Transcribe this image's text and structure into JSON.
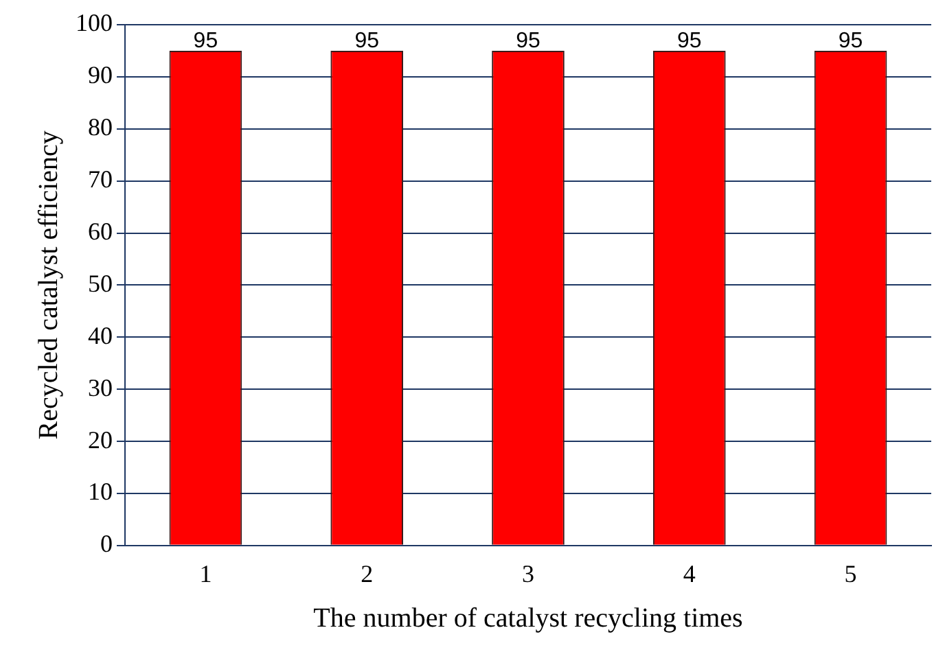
{
  "chart_data": {
    "type": "bar",
    "xlabel": "The number of catalyst recycling times",
    "ylabel": "Recycled catalyst efficiency",
    "categories": [
      "1",
      "2",
      "3",
      "4",
      "5"
    ],
    "values": [
      95,
      95,
      95,
      95,
      95
    ],
    "color": "#ff0000",
    "ylim": [
      0,
      100
    ],
    "yticks": [
      0,
      10,
      20,
      30,
      40,
      50,
      60,
      70,
      80,
      90,
      100
    ],
    "grid": "y",
    "data_labels": true,
    "legend": false
  }
}
